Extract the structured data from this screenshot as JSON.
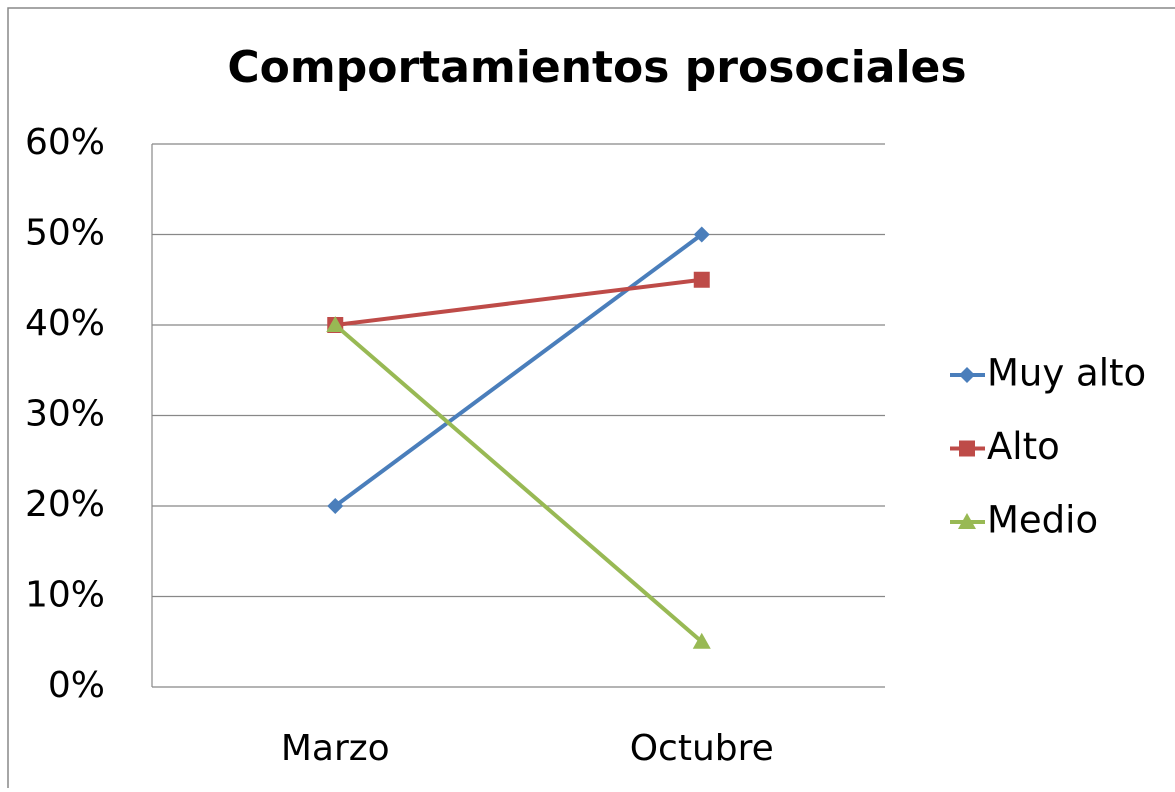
{
  "chart_data": {
    "type": "line",
    "title": "Comportamientos prosociales",
    "categories": [
      "Marzo",
      "Octubre"
    ],
    "series": [
      {
        "name": "Muy alto",
        "color": "#4a7ebb",
        "marker": "diamond",
        "values": [
          20,
          50
        ]
      },
      {
        "name": "Alto",
        "color": "#be4b48",
        "marker": "square",
        "values": [
          40,
          45
        ]
      },
      {
        "name": "Medio",
        "color": "#98b954",
        "marker": "triangle",
        "values": [
          40,
          5
        ]
      }
    ],
    "ylim": [
      0,
      60
    ],
    "yticks": [
      {
        "value": 0,
        "label": "0%"
      },
      {
        "value": 10,
        "label": "10%"
      },
      {
        "value": 20,
        "label": "20%"
      },
      {
        "value": 30,
        "label": "30%"
      },
      {
        "value": 40,
        "label": "40%"
      },
      {
        "value": 50,
        "label": "50%"
      },
      {
        "value": 60,
        "label": "60%"
      }
    ],
    "grid": true,
    "legend": "right"
  }
}
